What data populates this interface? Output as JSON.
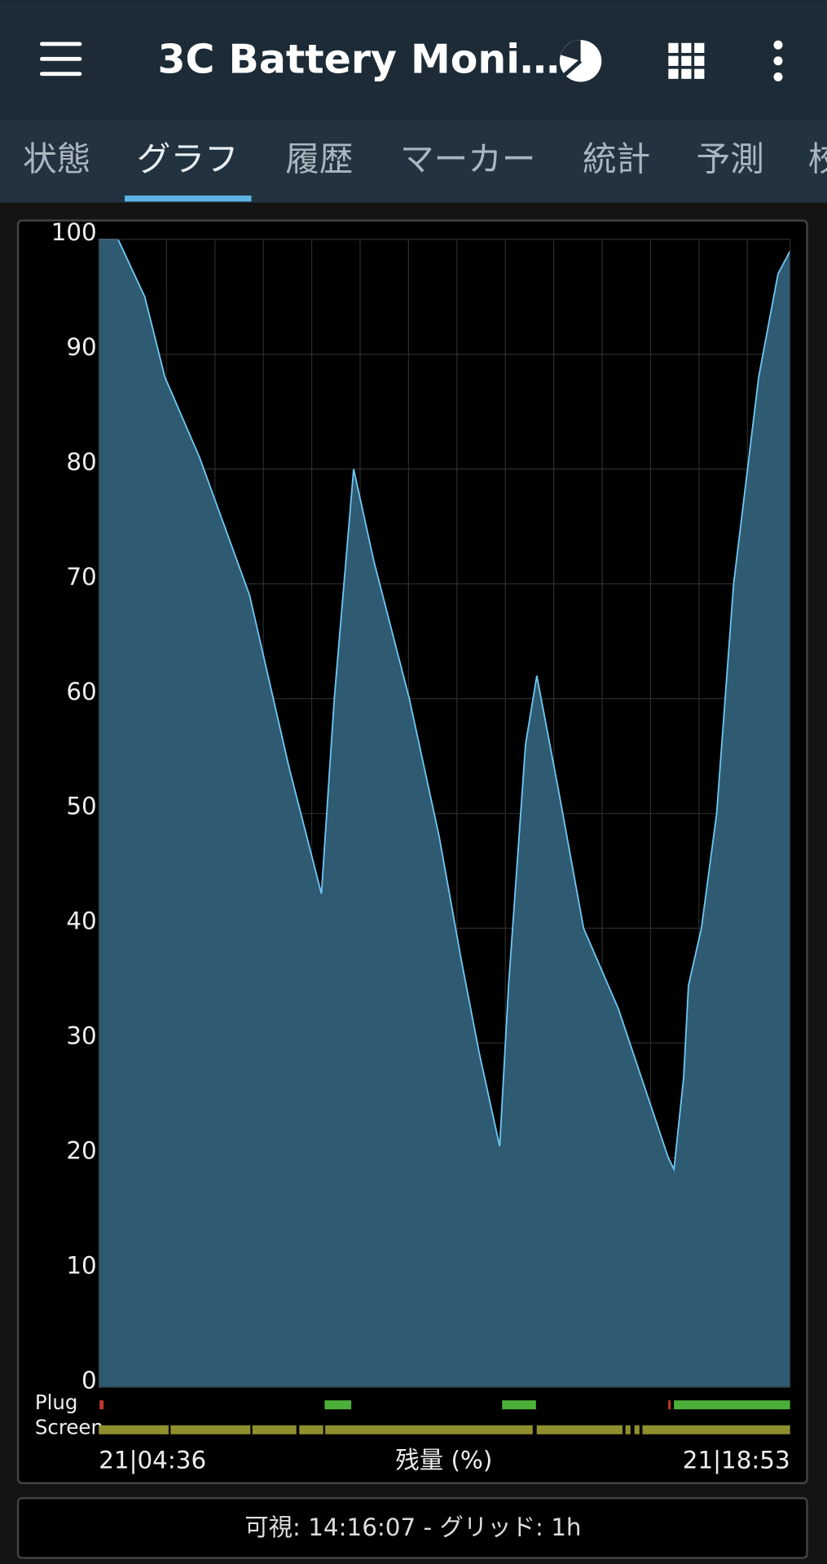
{
  "app_bar": {
    "title": "3C Battery Moni…"
  },
  "tabs": [
    "状態",
    "グラフ",
    "履歴",
    "マーカー",
    "統計",
    "予測",
    "校"
  ],
  "selected_tab": 1,
  "chart_data": {
    "type": "area",
    "x_label": "残量 (%)",
    "xlim": [
      "21|04:36",
      "21|18:53"
    ],
    "ylim": [
      0,
      100
    ],
    "yticks": [
      0,
      10,
      20,
      30,
      40,
      50,
      60,
      70,
      80,
      90,
      100
    ],
    "grid": true,
    "color": "#6ec6f0",
    "fill": "#2e5a72",
    "x": [
      "21|04:36",
      "21|05:00",
      "21|05:33",
      "21|05:58",
      "21|06:41",
      "21|07:43",
      "21|08:32",
      "21|09:12",
      "21|09:28",
      "21|09:52",
      "21|10:17",
      "21|11:01",
      "21|11:38",
      "21|12:06",
      "21|12:28",
      "21|12:53",
      "21|13:04",
      "21|13:25",
      "21|13:39",
      "21|14:06",
      "21|14:37",
      "21|15:20",
      "21|16:03",
      "21|16:22",
      "21|16:29",
      "21|16:41",
      "21|16:47",
      "21|17:03",
      "21|17:22",
      "21|17:43",
      "21|18:14",
      "21|18:38",
      "21|18:53"
    ],
    "values": [
      100,
      100,
      95,
      88,
      81,
      69,
      54,
      43,
      60,
      80,
      72,
      60,
      48,
      37,
      29,
      21,
      35,
      56,
      62,
      52,
      40,
      33,
      24,
      20,
      19,
      27,
      35,
      40,
      50,
      70,
      88,
      97,
      99
    ],
    "plug": {
      "name": "Plug",
      "segments": [
        {
          "start": "21|04:37",
          "end": "21|04:42",
          "color": "#c0392b"
        },
        {
          "start": "21|09:16",
          "end": "21|09:49",
          "color": "#4caf3a"
        },
        {
          "start": "21|12:56",
          "end": "21|13:38",
          "color": "#4caf3a"
        },
        {
          "start": "21|16:22",
          "end": "21|16:25",
          "color": "#c0392b"
        },
        {
          "start": "21|16:29",
          "end": "21|18:53",
          "color": "#4caf3a"
        }
      ]
    },
    "screen": {
      "name": "Screen"
    }
  },
  "footer": {
    "visible_label": "可視:",
    "visible": "14:16:07",
    "separator": "-",
    "grid_label": "グリッド:",
    "grid": "1h"
  }
}
